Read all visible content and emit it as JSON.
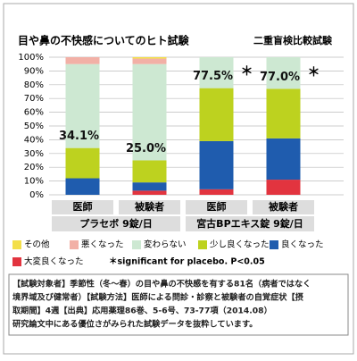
{
  "chart_data": {
    "type": "stacked_bar",
    "title": "目や鼻の不快感についてのヒト試験",
    "subtitle": "二重盲検比較試験",
    "categories": [
      "医師",
      "被験者",
      "医師",
      "被験者"
    ],
    "groups": [
      "プラセボ 9錠/日",
      "宮古BPエキス錠 9錠/日"
    ],
    "annotations": [
      "34.1%",
      "25.0%",
      "77.5%",
      "77.0%"
    ],
    "significance": [
      null,
      null,
      "＊",
      "＊"
    ],
    "series": [
      {
        "name": "その他",
        "color": "#f3df4a",
        "values": [
          0,
          1,
          0,
          0
        ]
      },
      {
        "name": "悪くなった",
        "color": "#f2b0a6",
        "values": [
          5,
          4,
          0,
          0
        ]
      },
      {
        "name": "変わらない",
        "color": "#cde8d2",
        "values": [
          61,
          70,
          22.5,
          23
        ]
      },
      {
        "name": "少し良くなった",
        "color": "#bdd21f",
        "values": [
          22,
          16,
          38.5,
          36
        ]
      },
      {
        "name": "良くなった",
        "color": "#1f5cae",
        "values": [
          12,
          6,
          35,
          30
        ]
      },
      {
        "name": "大変良くなった",
        "color": "#e2343f",
        "values": [
          0,
          3,
          4,
          11
        ]
      }
    ],
    "note_legend": "＊significant for placebo.  P<0.05",
    "ylim": [
      0,
      100
    ],
    "yticks": [
      {
        "value": 0,
        "label": "0%"
      },
      {
        "value": 10,
        "label": "10%"
      },
      {
        "value": 20,
        "label": "20%"
      },
      {
        "value": 30,
        "label": "30%"
      },
      {
        "value": 40,
        "label": "40%"
      },
      {
        "value": 50,
        "label": "50%"
      },
      {
        "value": 60,
        "label": "60%"
      },
      {
        "value": 70,
        "label": "70%"
      },
      {
        "value": 80,
        "label": "80%"
      },
      {
        "value": 90,
        "label": "90%"
      },
      {
        "value": 100,
        "label": "100%"
      }
    ],
    "grid": true
  },
  "footnote": [
    "【試験対象者】季節性（冬〜春）の目や鼻の不快感を有する81名（病者ではなく",
    "境界域及び健常者）【試験方法】医師による問診・診察と被験者の自覚症状【摂",
    "取期間】4週【出典】応用薬理86巻、5-6号、73-77項（2014.08）",
    "研究論文中にある優位さがみられた試験データを抜粋しています。"
  ]
}
